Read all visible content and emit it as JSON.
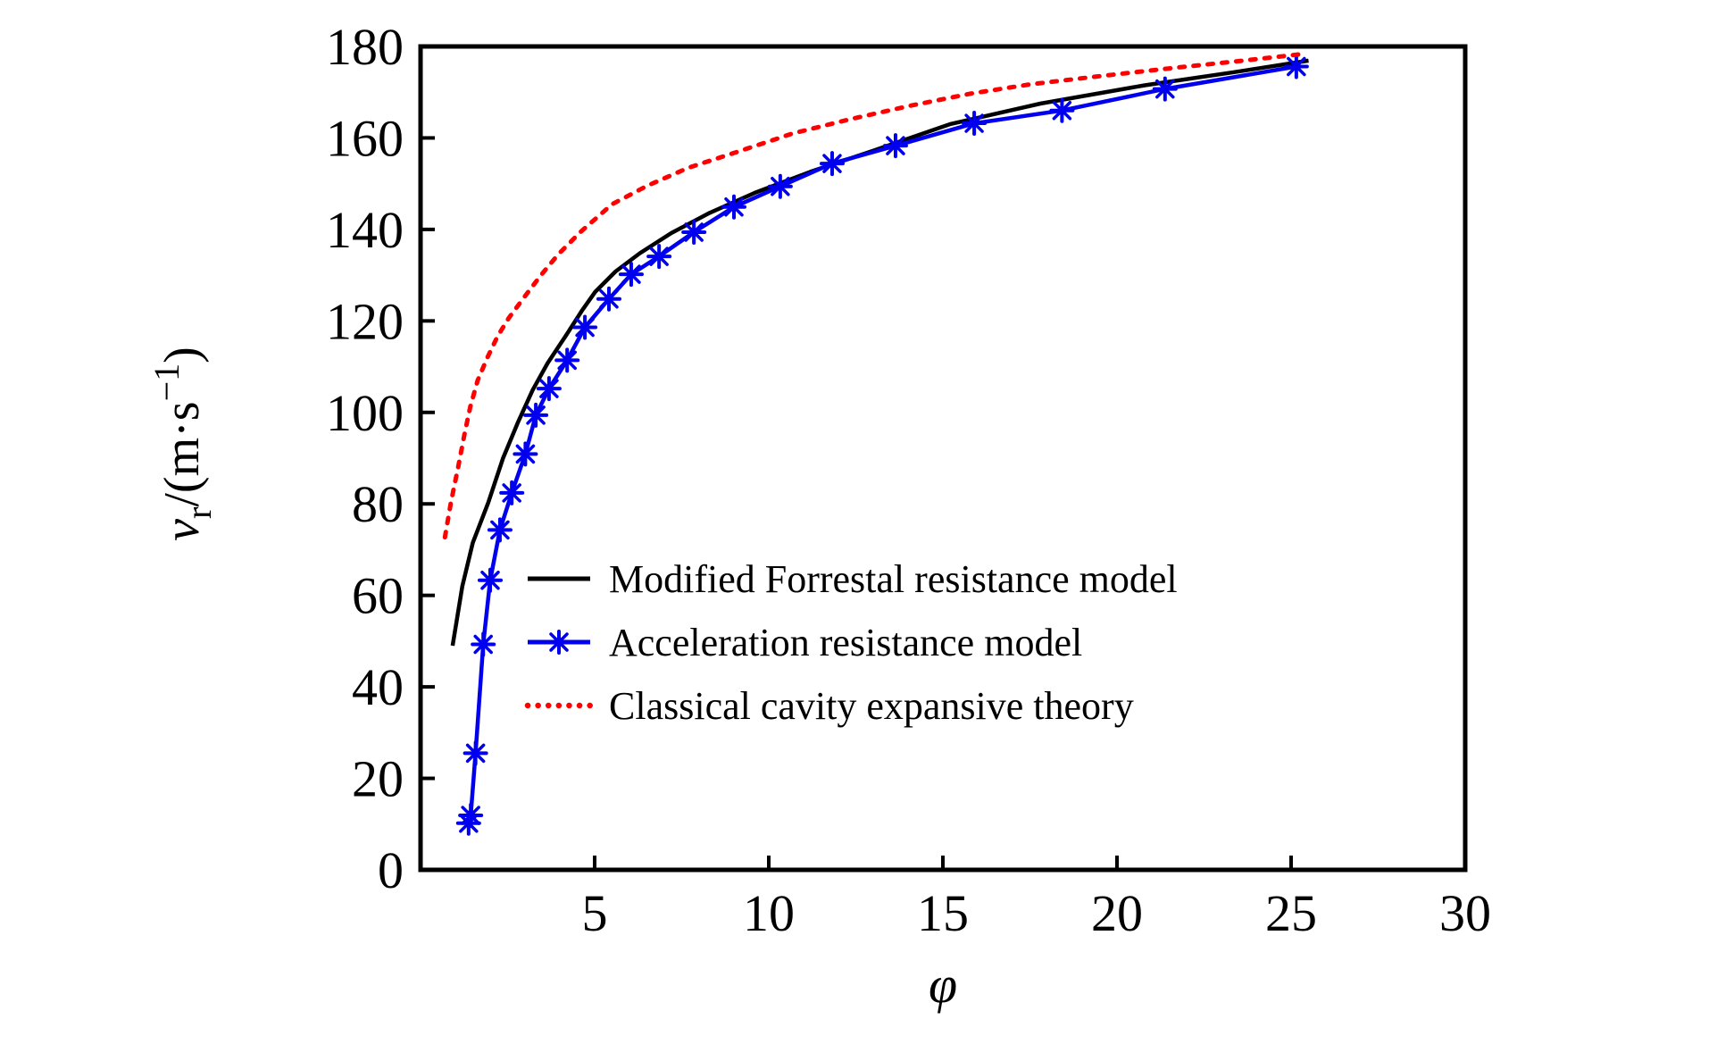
{
  "figure": {
    "background": "#ffffff",
    "axis_color": "#000000"
  },
  "chart_data": {
    "type": "line",
    "title": "",
    "xlabel": "φ",
    "ylabel": "v_r/(m·s^−1)",
    "ylabel_parts": {
      "symbol": "v",
      "subscript": "r",
      "unit_open": "/(m·s",
      "exponent": "−1",
      "unit_close": ")"
    },
    "xlim": [
      0,
      30
    ],
    "ylim": [
      0,
      180
    ],
    "x_ticks": [
      5,
      10,
      15,
      20,
      25,
      30
    ],
    "y_ticks": [
      0,
      20,
      40,
      60,
      80,
      100,
      120,
      140,
      160,
      180
    ],
    "grid": false,
    "legend_position": "inside-center-right",
    "series": [
      {
        "name": "Modified Forrestal resistance model",
        "color": "#000000",
        "style": "solid",
        "marker": "none",
        "points": [
          [
            0.92,
            49
          ],
          [
            1.2,
            62
          ],
          [
            1.5,
            71.5
          ],
          [
            1.94,
            80.2
          ],
          [
            2.37,
            90
          ],
          [
            2.79,
            97.7
          ],
          [
            3.22,
            104.9
          ],
          [
            3.65,
            110.8
          ],
          [
            4.16,
            116.6
          ],
          [
            4.63,
            122.2
          ],
          [
            5.02,
            126.4
          ],
          [
            5.6,
            130.8
          ],
          [
            6.3,
            134.8
          ],
          [
            7.2,
            139.2
          ],
          [
            8.3,
            143.6
          ],
          [
            9.6,
            148
          ],
          [
            11.2,
            152.6
          ],
          [
            13,
            157.2
          ],
          [
            15.2,
            163
          ],
          [
            17.8,
            167.5
          ],
          [
            20.8,
            171.5
          ],
          [
            23.3,
            174.3
          ],
          [
            25.5,
            176.9
          ]
        ]
      },
      {
        "name": "Acceleration resistance model",
        "color": "#0000ee",
        "style": "solid",
        "marker": "asterisk",
        "points": [
          [
            1.38,
            10.2
          ],
          [
            1.44,
            11.9
          ],
          [
            1.58,
            25.5
          ],
          [
            1.8,
            49.3
          ],
          [
            2.0,
            63.3
          ],
          [
            2.28,
            74.3
          ],
          [
            2.62,
            82.4
          ],
          [
            3.01,
            90.9
          ],
          [
            3.31,
            99.4
          ],
          [
            3.69,
            105.2
          ],
          [
            4.21,
            111.4
          ],
          [
            4.72,
            118.6
          ],
          [
            5.41,
            124.8
          ],
          [
            6.05,
            130.2
          ],
          [
            6.85,
            134.1
          ],
          [
            7.85,
            139.4
          ],
          [
            9.0,
            144.9
          ],
          [
            10.33,
            149.4
          ],
          [
            11.82,
            154.4
          ],
          [
            13.64,
            158.3
          ],
          [
            15.9,
            163.2
          ],
          [
            18.42,
            166.0
          ],
          [
            21.38,
            170.7
          ],
          [
            25.15,
            175.6
          ]
        ]
      },
      {
        "name": "Classical cavity expansive theory",
        "color": "#ff0000",
        "style": "dotted",
        "marker": "none",
        "points": [
          [
            0.7,
            72.7
          ],
          [
            0.87,
            80.2
          ],
          [
            1.08,
            88
          ],
          [
            1.27,
            95.5
          ],
          [
            1.43,
            101.3
          ],
          [
            1.64,
            107
          ],
          [
            1.92,
            112
          ],
          [
            2.21,
            116.6
          ],
          [
            2.54,
            120.7
          ],
          [
            2.97,
            125.1
          ],
          [
            3.46,
            130
          ],
          [
            3.95,
            134.5
          ],
          [
            4.6,
            139.5
          ],
          [
            5.5,
            145.5
          ],
          [
            6.5,
            149.5
          ],
          [
            7.7,
            153.5
          ],
          [
            9.0,
            156.7
          ],
          [
            10.7,
            161
          ],
          [
            12.4,
            164.2
          ],
          [
            14.1,
            167.1
          ],
          [
            15.8,
            169.7
          ],
          [
            17.5,
            171.7
          ],
          [
            19.5,
            173.5
          ],
          [
            21.5,
            175.2
          ],
          [
            23.5,
            176.8
          ],
          [
            25.4,
            178.4
          ]
        ]
      }
    ]
  }
}
